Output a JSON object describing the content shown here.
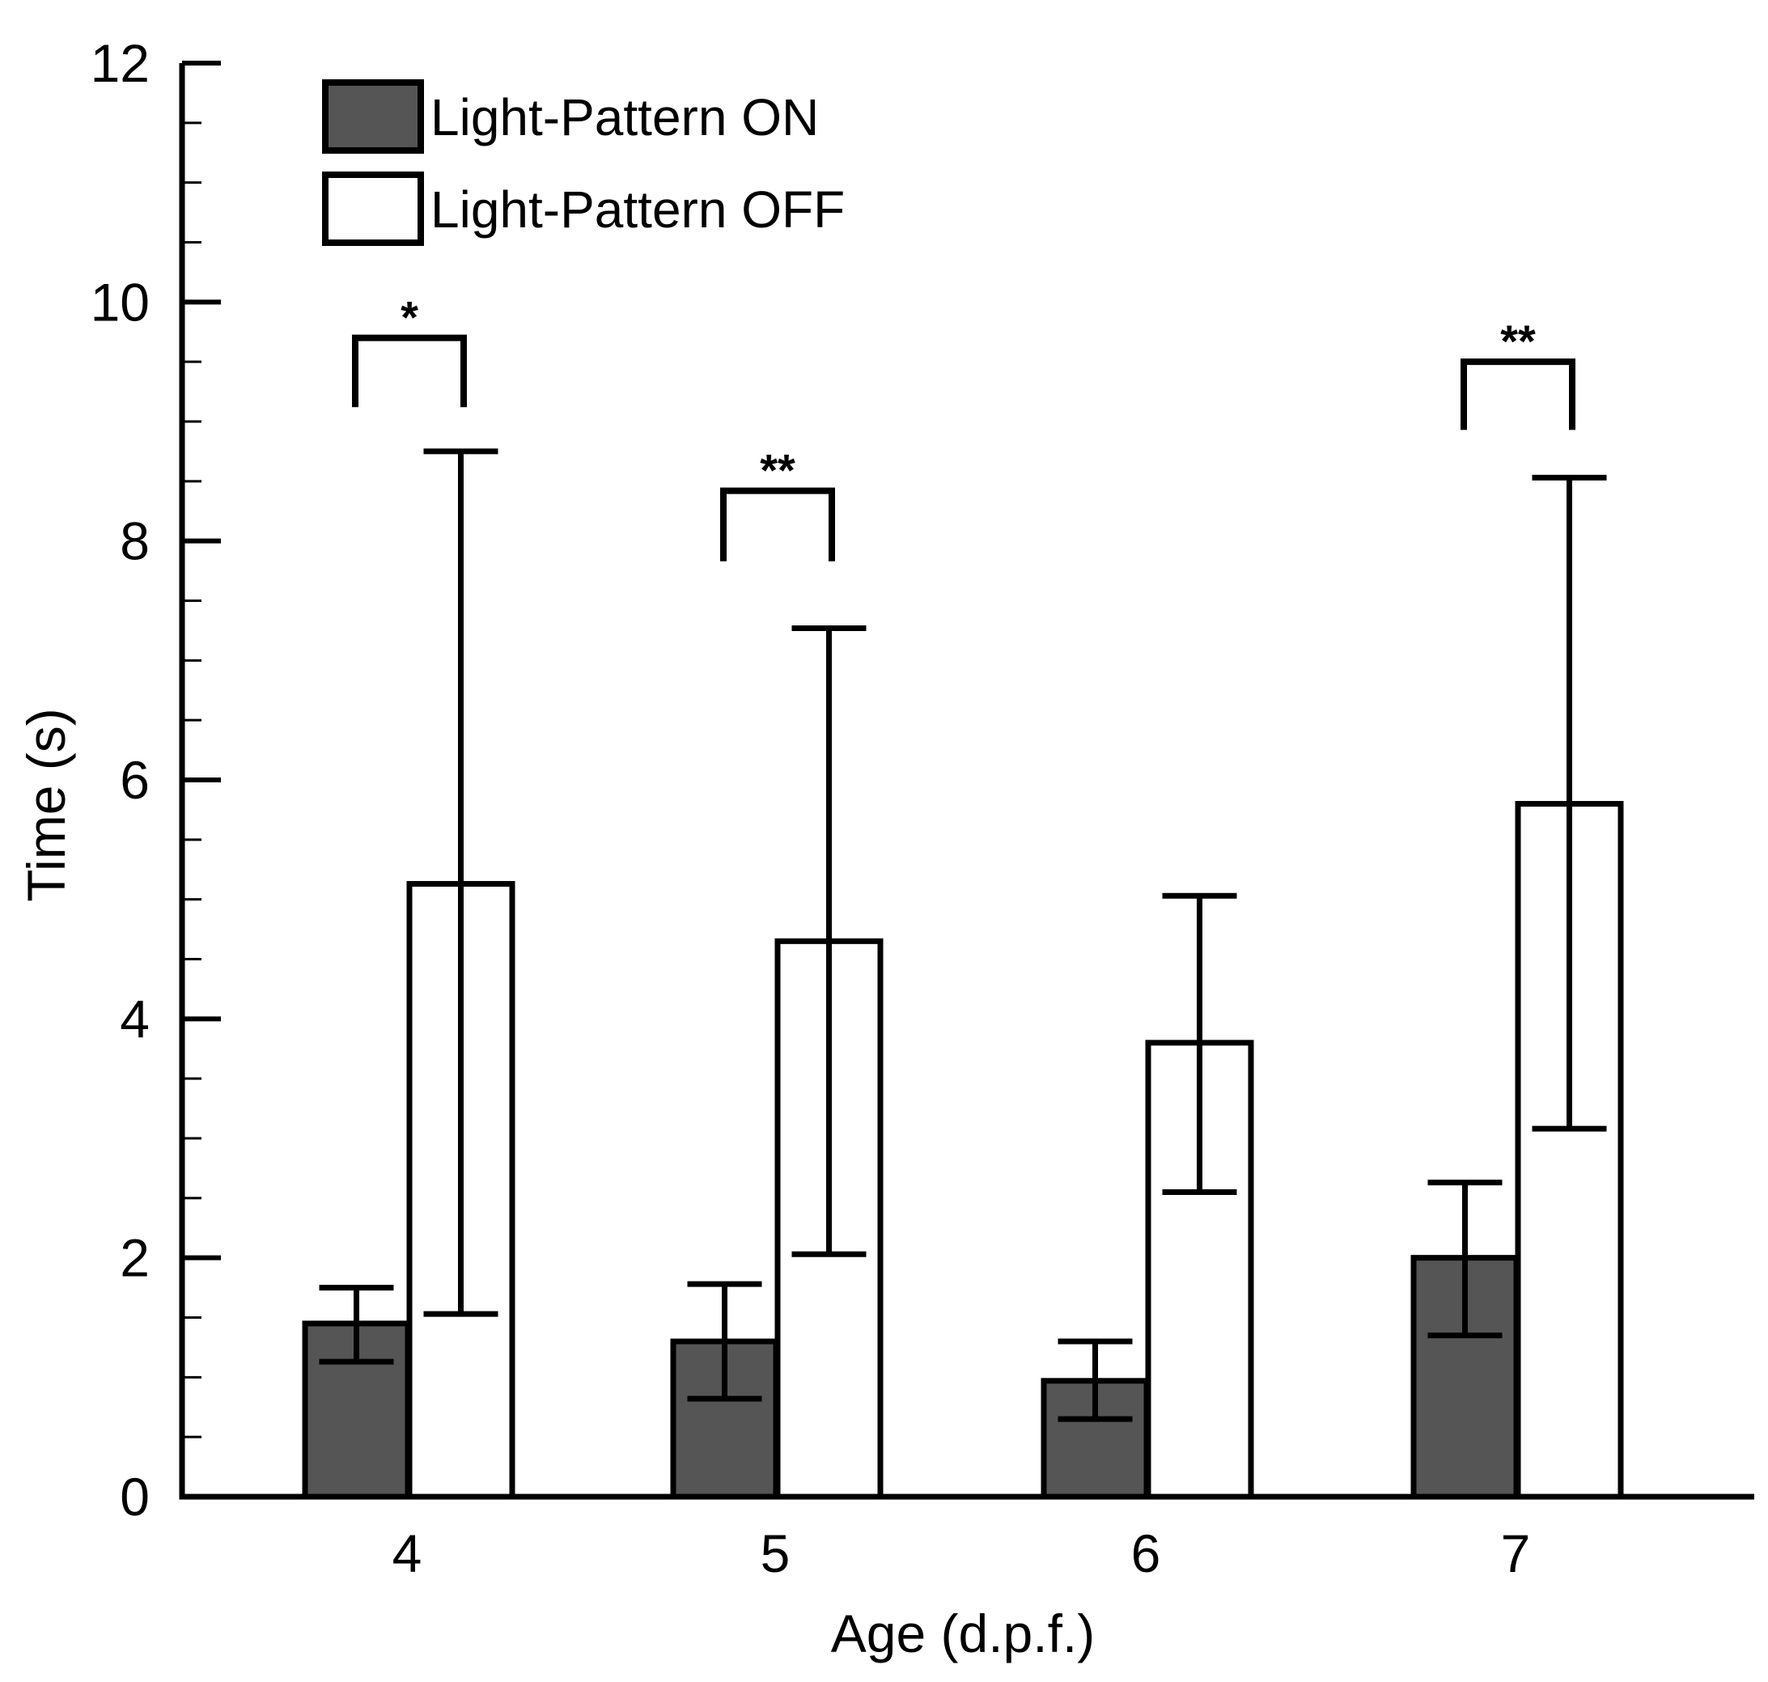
{
  "chart_data": {
    "type": "bar",
    "title": "",
    "xlabel": "Age (d.p.f.)",
    "ylabel": "Time (s)",
    "ylim": [
      0,
      12
    ],
    "yticks": [
      0,
      2,
      4,
      6,
      8,
      10,
      12
    ],
    "y_minor_step": 0.5,
    "categories": [
      "4",
      "5",
      "6",
      "7"
    ],
    "legend_position": "top-left",
    "series": [
      {
        "name": "Light-Pattern ON",
        "fill": "#555555",
        "values": [
          1.45,
          1.3,
          0.97,
          2.0
        ],
        "err_low": [
          1.13,
          0.82,
          0.65,
          1.35
        ],
        "err_high": [
          1.75,
          1.78,
          1.3,
          2.63
        ]
      },
      {
        "name": "Light-Pattern OFF",
        "fill": "#ffffff",
        "values": [
          5.13,
          4.65,
          3.8,
          5.8
        ],
        "err_low": [
          1.53,
          2.03,
          2.55,
          3.08
        ],
        "err_high": [
          8.75,
          7.27,
          5.03,
          8.53
        ]
      }
    ],
    "significance": [
      {
        "category": "4",
        "label": "*",
        "bracket_y": 9.7,
        "leg_bottom": 9.12
      },
      {
        "category": "5",
        "label": "**",
        "bracket_y": 8.42,
        "leg_bottom": 7.83
      },
      {
        "category": "7",
        "label": "**",
        "bracket_y": 9.5,
        "leg_bottom": 8.93
      }
    ]
  }
}
